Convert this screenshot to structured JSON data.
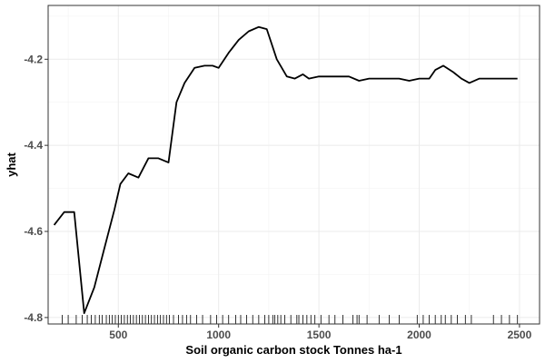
{
  "chart_data": {
    "type": "line",
    "title": "",
    "xlabel": "Soil organic carbon stock Tonnes ha-1",
    "ylabel": "yhat",
    "xlim": [
      150,
      2600
    ],
    "ylim": [
      -4.815,
      -4.075
    ],
    "x_ticks": [
      500,
      1000,
      1500,
      2000,
      2500
    ],
    "y_ticks": [
      -4.8,
      -4.6,
      -4.4,
      -4.2
    ],
    "x_tick_labels": [
      "500",
      "1000",
      "1500",
      "2000",
      "2500"
    ],
    "y_tick_labels": [
      "-4.8",
      "-4.6",
      "-4.4",
      "-4.2"
    ],
    "grid": true,
    "panel_border": true,
    "line_color": "#000000",
    "grid_color": "#ebebeb",
    "series": [
      {
        "x": [
          180,
          230,
          280,
          330,
          380,
          430,
          480,
          510,
          550,
          600,
          650,
          700,
          750,
          790,
          830,
          880,
          930,
          970,
          1000,
          1050,
          1100,
          1150,
          1200,
          1240,
          1290,
          1340,
          1380,
          1420,
          1450,
          1500,
          1550,
          1600,
          1650,
          1700,
          1750,
          1800,
          1850,
          1900,
          1950,
          2000,
          2050,
          2080,
          2120,
          2170,
          2210,
          2250,
          2300,
          2350,
          2400,
          2450,
          2490
        ],
        "y": [
          -4.585,
          -4.555,
          -4.555,
          -4.79,
          -4.73,
          -4.64,
          -4.55,
          -4.49,
          -4.465,
          -4.475,
          -4.43,
          -4.43,
          -4.44,
          -4.3,
          -4.255,
          -4.22,
          -4.215,
          -4.215,
          -4.22,
          -4.185,
          -4.155,
          -4.135,
          -4.125,
          -4.13,
          -4.2,
          -4.24,
          -4.245,
          -4.235,
          -4.245,
          -4.24,
          -4.24,
          -4.24,
          -4.24,
          -4.25,
          -4.245,
          -4.245,
          -4.245,
          -4.245,
          -4.25,
          -4.245,
          -4.245,
          -4.225,
          -4.215,
          -4.23,
          -4.245,
          -4.255,
          -4.245,
          -4.245,
          -4.245,
          -4.245,
          -4.245
        ]
      }
    ],
    "rug_x": [
      220,
      250,
      290,
      320,
      345,
      365,
      385,
      405,
      420,
      440,
      455,
      470,
      485,
      500,
      515,
      530,
      545,
      560,
      575,
      590,
      605,
      620,
      635,
      650,
      665,
      680,
      695,
      710,
      725,
      740,
      755,
      775,
      800,
      820,
      840,
      860,
      890,
      920,
      960,
      990,
      1020,
      1050,
      1085,
      1110,
      1140,
      1170,
      1200,
      1230,
      1250,
      1270,
      1280,
      1295,
      1310,
      1330,
      1360,
      1390,
      1400,
      1420,
      1440,
      1460,
      1480,
      1510,
      1550,
      1580,
      1620,
      1670,
      1690,
      1700,
      1740,
      1800,
      1850,
      1900,
      1990,
      2020,
      2050,
      2080,
      2110,
      2130,
      2160,
      2190,
      2230,
      2260,
      2370,
      2410,
      2450,
      2490
    ]
  }
}
